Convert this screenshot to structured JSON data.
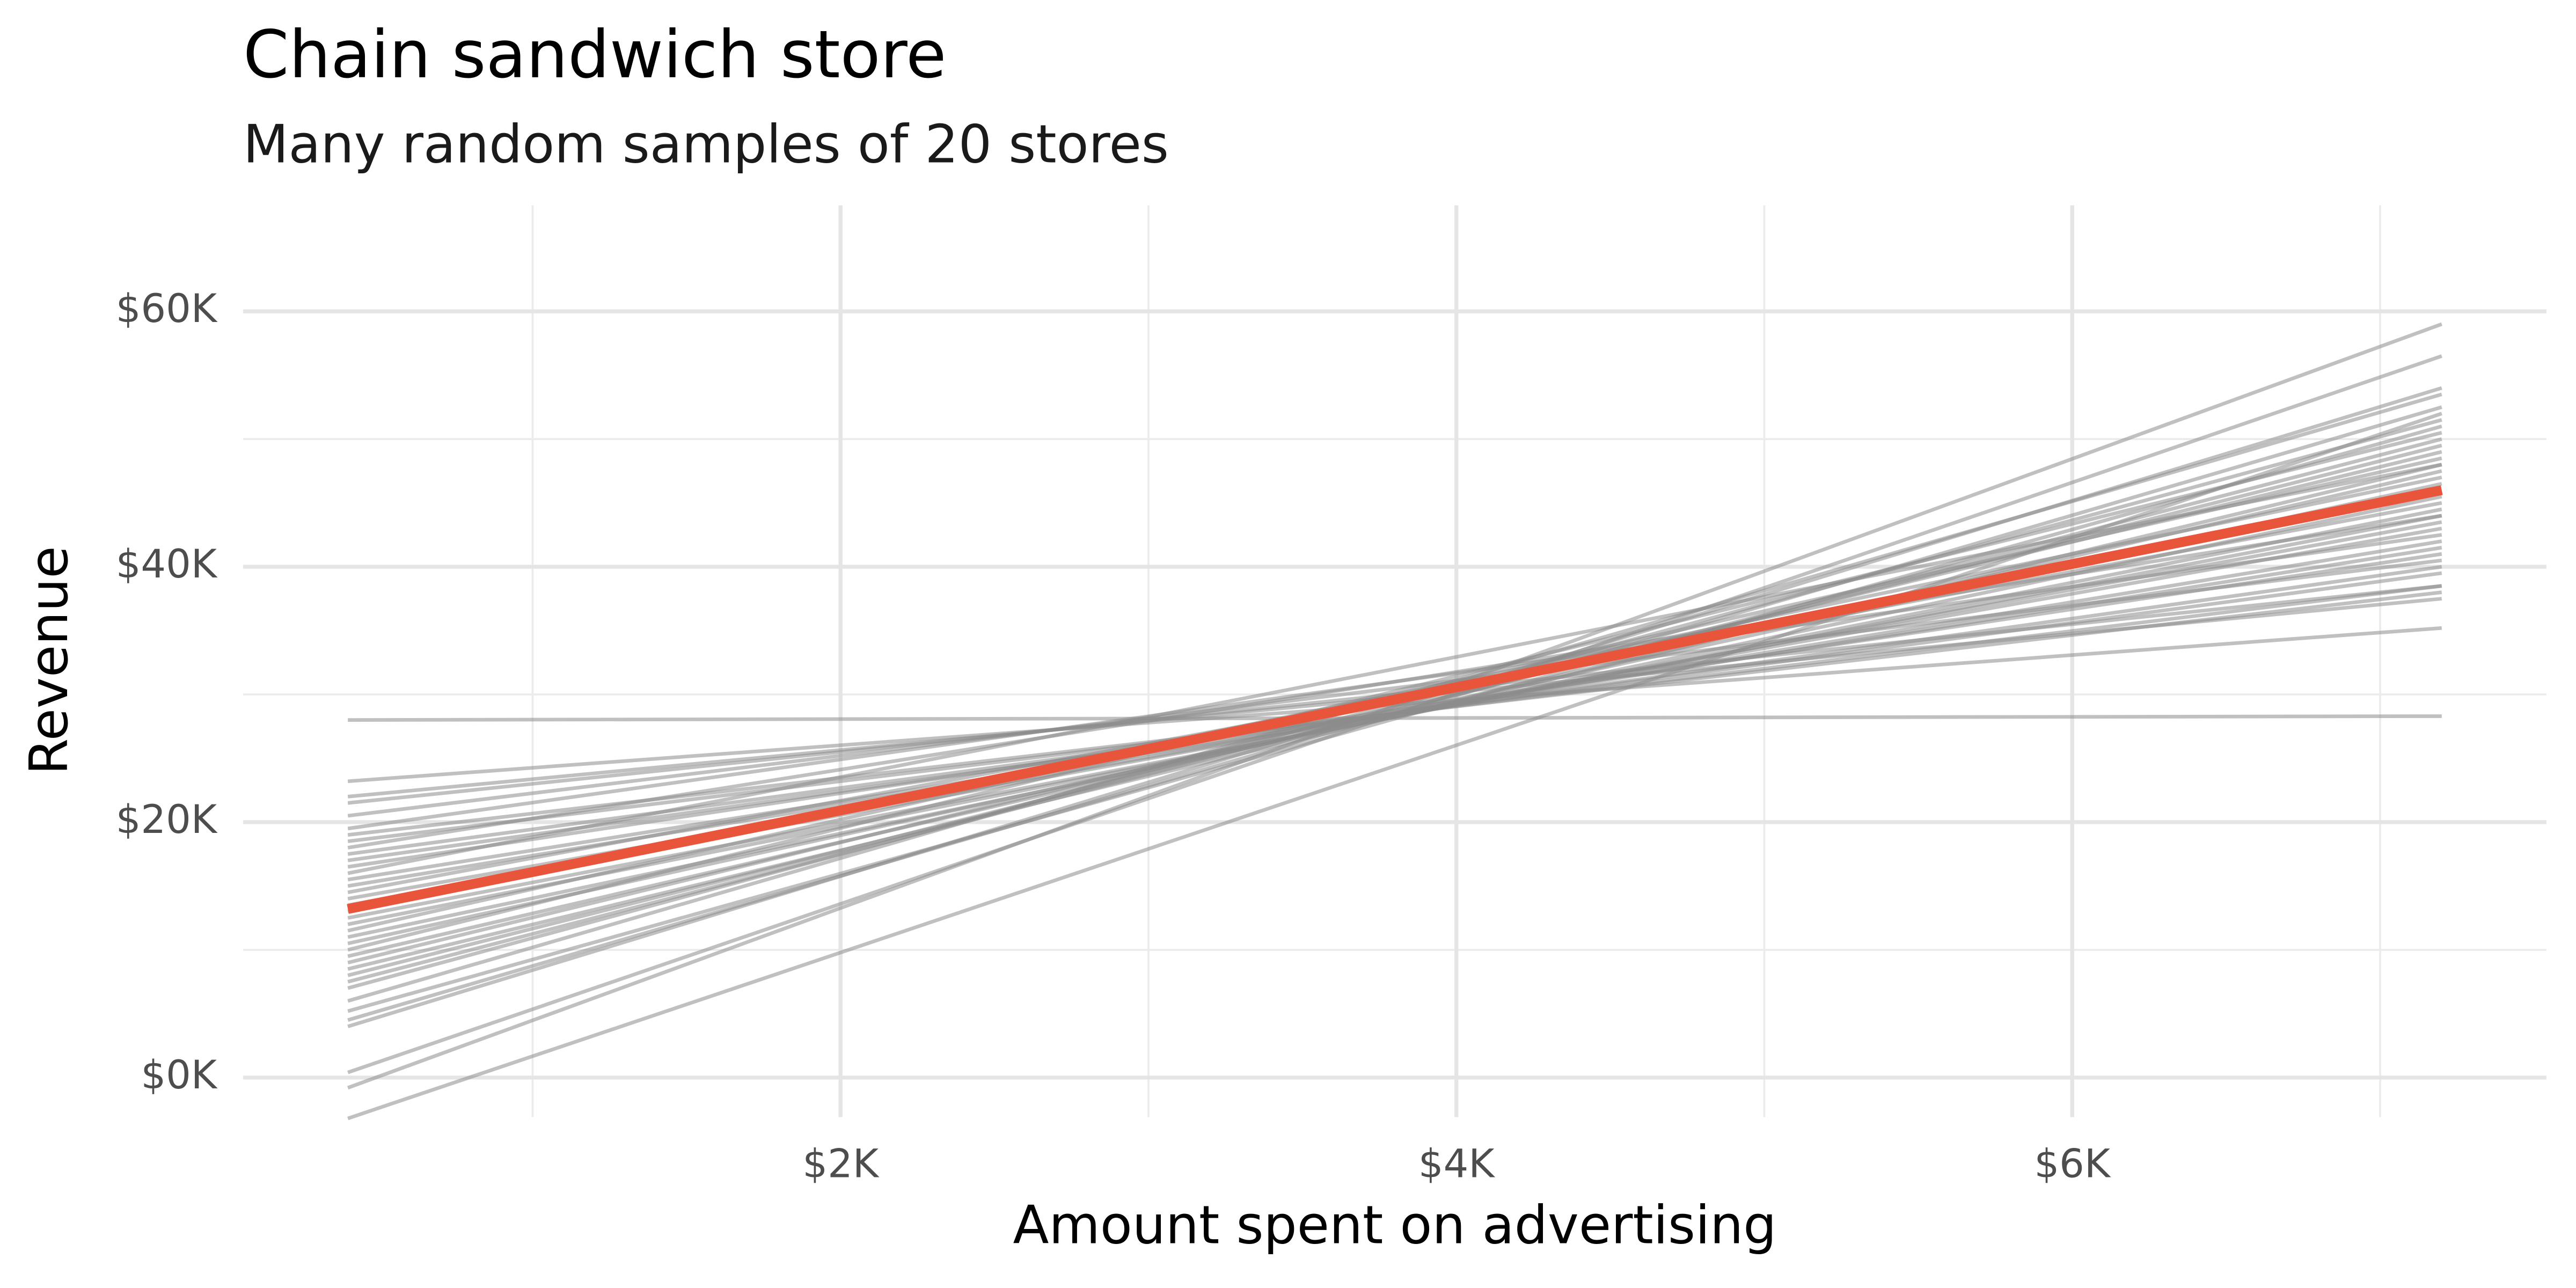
{
  "chart_data": {
    "type": "line",
    "title": "Chain sandwich store",
    "subtitle": "Many random samples of 20 stores",
    "x_label": "Amount spent on advertising",
    "y_label": "Revenue",
    "x": [
      400,
      7200
    ],
    "series": [
      {
        "color": "#8c8c8c",
        "values": [
          -3200,
          52000
        ]
      },
      {
        "color": "#8c8c8c",
        "values": [
          -800,
          59000
        ]
      },
      {
        "color": "#8c8c8c",
        "values": [
          400,
          56500
        ]
      },
      {
        "color": "#8c8c8c",
        "values": [
          4000,
          54000
        ]
      },
      {
        "color": "#8c8c8c",
        "values": [
          4500,
          52500
        ]
      },
      {
        "color": "#8c8c8c",
        "values": [
          5200,
          51000
        ]
      },
      {
        "color": "#8c8c8c",
        "values": [
          6000,
          53500
        ]
      },
      {
        "color": "#8c8c8c",
        "values": [
          7000,
          51500
        ]
      },
      {
        "color": "#8c8c8c",
        "values": [
          7500,
          50000
        ]
      },
      {
        "color": "#8c8c8c",
        "values": [
          8000,
          49500
        ]
      },
      {
        "color": "#8c8c8c",
        "values": [
          8500,
          48000
        ]
      },
      {
        "color": "#8c8c8c",
        "values": [
          9000,
          49000
        ]
      },
      {
        "color": "#8c8c8c",
        "values": [
          9500,
          47500
        ]
      },
      {
        "color": "#8c8c8c",
        "values": [
          10000,
          50500
        ]
      },
      {
        "color": "#8c8c8c",
        "values": [
          10500,
          46500
        ]
      },
      {
        "color": "#8c8c8c",
        "values": [
          11000,
          45500
        ]
      },
      {
        "color": "#8c8c8c",
        "values": [
          11500,
          48500
        ]
      },
      {
        "color": "#8c8c8c",
        "values": [
          12000,
          44500
        ]
      },
      {
        "color": "#8c8c8c",
        "values": [
          12500,
          44000
        ]
      },
      {
        "color": "#8c8c8c",
        "values": [
          13000,
          47000
        ]
      },
      {
        "color": "#8c8c8c",
        "values": [
          13500,
          43500
        ]
      },
      {
        "color": "#8c8c8c",
        "values": [
          14000,
          43000
        ]
      },
      {
        "color": "#8c8c8c",
        "values": [
          14500,
          45000
        ]
      },
      {
        "color": "#8c8c8c",
        "values": [
          15000,
          42000
        ]
      },
      {
        "color": "#8c8c8c",
        "values": [
          15500,
          41500
        ]
      },
      {
        "color": "#8c8c8c",
        "values": [
          16000,
          48000
        ]
      },
      {
        "color": "#8c8c8c",
        "values": [
          16500,
          41000
        ]
      },
      {
        "color": "#8c8c8c",
        "values": [
          17000,
          40000
        ]
      },
      {
        "color": "#8c8c8c",
        "values": [
          17500,
          39500
        ]
      },
      {
        "color": "#8c8c8c",
        "values": [
          18000,
          44000
        ]
      },
      {
        "color": "#8c8c8c",
        "values": [
          18500,
          38500
        ]
      },
      {
        "color": "#8c8c8c",
        "values": [
          19000,
          38000
        ]
      },
      {
        "color": "#8c8c8c",
        "values": [
          19500,
          42500
        ]
      },
      {
        "color": "#8c8c8c",
        "values": [
          20500,
          40500
        ]
      },
      {
        "color": "#8c8c8c",
        "values": [
          21500,
          38500
        ]
      },
      {
        "color": "#8c8c8c",
        "values": [
          22000,
          37500
        ]
      },
      {
        "color": "#8c8c8c",
        "values": [
          23200,
          35200
        ]
      },
      {
        "color": "#8c8c8c",
        "values": [
          28000,
          28300
        ]
      }
    ],
    "line_opacity": 0.55,
    "highlight": {
      "color": "#e8553a",
      "values": [
        13200,
        46000
      ]
    },
    "xlim": [
      60,
      7540
    ],
    "ylim": [
      -3100,
      68300
    ],
    "xticks": [
      {
        "value": 2000,
        "label": "$2K"
      },
      {
        "value": 4000,
        "label": "$4K"
      },
      {
        "value": 6000,
        "label": "$6K"
      }
    ],
    "yticks": [
      {
        "value": 0,
        "label": "$0K"
      },
      {
        "value": 20000,
        "label": "$20K"
      },
      {
        "value": 40000,
        "label": "$40K"
      },
      {
        "value": 60000,
        "label": "$60K"
      }
    ],
    "x_minor_grid": [
      1000,
      3000,
      5000,
      7000
    ],
    "y_minor_grid": [
      10000,
      30000,
      50000
    ],
    "grid": true
  }
}
